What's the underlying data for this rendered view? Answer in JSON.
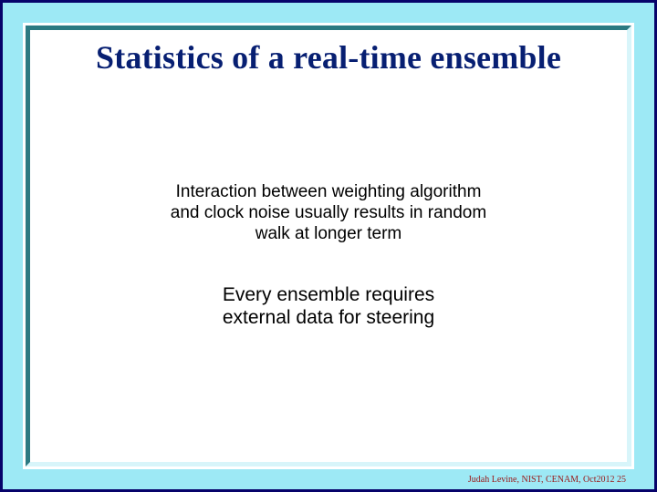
{
  "colors": {
    "outer_border": "#07036a",
    "cyan_frame": "#9de9f5",
    "bevel_light": "#d8f5fa",
    "bevel_dark": "#2c7a82",
    "title_color": "#071f72",
    "text_color": "#000000",
    "footer_color": "#9a1818",
    "content_bg": "#ffffff"
  },
  "title": {
    "text": "Statistics of a real-time ensemble",
    "fontsize": 36
  },
  "block1": {
    "lines": [
      "Interaction between weighting algorithm",
      "and clock noise usually results in random",
      "walk at longer term"
    ],
    "fontsize": 19
  },
  "block2": {
    "lines": [
      "Every ensemble requires",
      "external data for steering"
    ],
    "fontsize": 21
  },
  "footer": {
    "text": "Judah Levine, NIST, CENAM, Oct2012  25",
    "fontsize": 10
  }
}
